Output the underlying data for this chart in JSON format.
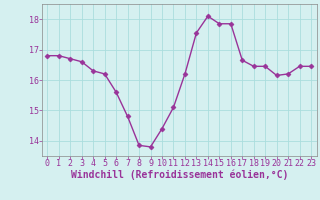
{
  "x": [
    0,
    1,
    2,
    3,
    4,
    5,
    6,
    7,
    8,
    9,
    10,
    11,
    12,
    13,
    14,
    15,
    16,
    17,
    18,
    19,
    20,
    21,
    22,
    23
  ],
  "y": [
    16.8,
    16.8,
    16.7,
    16.6,
    16.3,
    16.2,
    15.6,
    14.8,
    13.85,
    13.8,
    14.4,
    15.1,
    16.2,
    17.55,
    18.1,
    17.85,
    17.85,
    16.65,
    16.45,
    16.45,
    16.15,
    16.2,
    16.45,
    16.45
  ],
  "line_color": "#993399",
  "marker": "D",
  "marker_size": 2.5,
  "bg_color": "#d5f0f0",
  "grid_color": "#aadddd",
  "xlabel": "Windchill (Refroidissement éolien,°C)",
  "ylim": [
    13.5,
    18.5
  ],
  "yticks": [
    14,
    15,
    16,
    17,
    18
  ],
  "xticks": [
    0,
    1,
    2,
    3,
    4,
    5,
    6,
    7,
    8,
    9,
    10,
    11,
    12,
    13,
    14,
    15,
    16,
    17,
    18,
    19,
    20,
    21,
    22,
    23
  ],
  "tick_fontsize": 6,
  "xlabel_fontsize": 7,
  "text_color": "#993399",
  "spine_color": "#888888",
  "linewidth": 1.0
}
